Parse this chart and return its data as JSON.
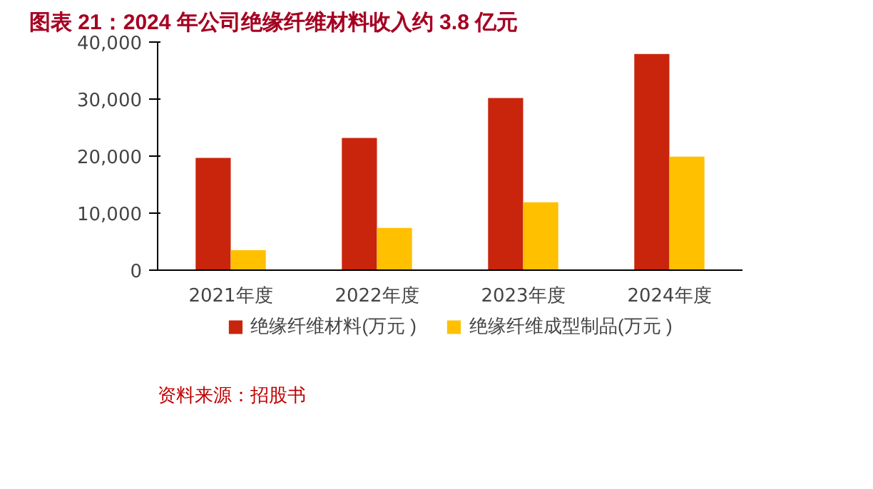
{
  "chart_data": {
    "type": "bar",
    "title": "图表 21：2024 年公司绝缘纤维材料收入约 3.8 亿元",
    "categories": [
      "2021年度",
      "2022年度",
      "2023年度",
      "2024年度"
    ],
    "series": [
      {
        "name": "绝缘纤维材料(万元 )",
        "color": "#c8250c",
        "values": [
          19700,
          23200,
          30200,
          37900
        ]
      },
      {
        "name": "绝缘纤维成型制品(万元 )",
        "color": "#ffc000",
        "values": [
          3500,
          7400,
          11900,
          19900
        ]
      }
    ],
    "ylim": [
      0,
      40000
    ],
    "yticks": [
      {
        "value": 0,
        "label": "0"
      },
      {
        "value": 10000,
        "label": "10,000"
      },
      {
        "value": 20000,
        "label": "20,000"
      },
      {
        "value": 30000,
        "label": "30,000"
      },
      {
        "value": 40000,
        "label": "40,000"
      }
    ],
    "grid": false,
    "legend": "bottom",
    "annotations": [
      "资料来源：招股书"
    ]
  }
}
